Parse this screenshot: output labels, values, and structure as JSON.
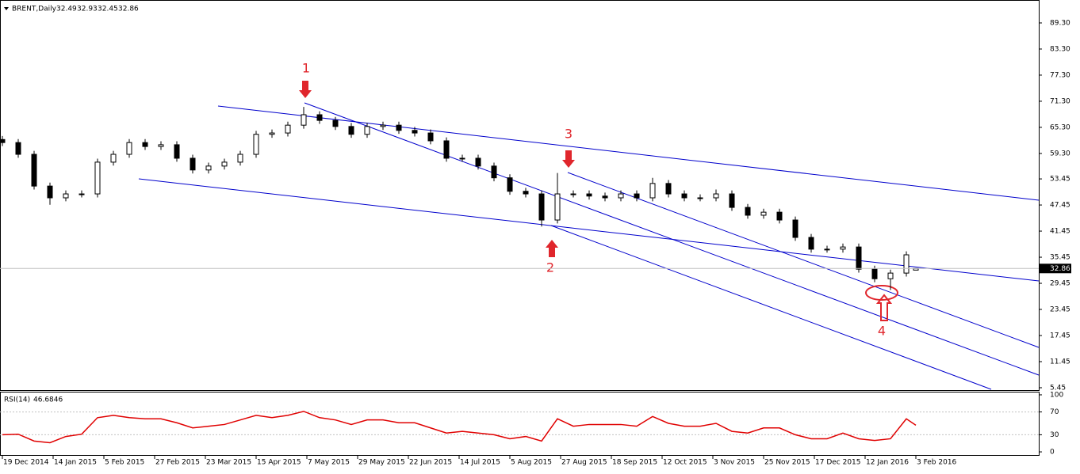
{
  "chart_data": [
    {
      "type": "candlestick",
      "title": "BRENT,Daily",
      "x": [
        0,
        5,
        10,
        15,
        20,
        25,
        30,
        35,
        40,
        45,
        50,
        55,
        60,
        65,
        70,
        75,
        80,
        85,
        90,
        95,
        100,
        105,
        110,
        115,
        120,
        125,
        130,
        135,
        140,
        145,
        150,
        155,
        160,
        165,
        170,
        175,
        180,
        185,
        190,
        195,
        200,
        205,
        210,
        215,
        220,
        225,
        230,
        235,
        240,
        245,
        250,
        255,
        260,
        265,
        270,
        275,
        280,
        285,
        288
      ],
      "open": [
        62.5,
        61.8,
        59.1,
        51.8,
        49.1,
        50.0,
        50.0,
        57.3,
        59.1,
        61.8,
        60.9,
        61.3,
        58.2,
        55.5,
        56.4,
        57.3,
        59.1,
        63.7,
        64.0,
        65.8,
        68.2,
        66.9,
        65.5,
        63.7,
        65.5,
        65.8,
        64.6,
        64.0,
        62.2,
        58.2,
        58.2,
        56.4,
        53.7,
        50.6,
        50.0,
        44.0,
        50.0,
        50.0,
        49.5,
        49.1,
        50.0,
        49.1,
        52.4,
        50.0,
        49.1,
        49.1,
        50.0,
        46.9,
        45.1,
        45.8,
        44.0,
        40.0,
        37.3,
        37.3,
        37.8,
        32.7,
        30.5,
        31.8,
        32.49
      ],
      "high": [
        63.3,
        62.6,
        59.9,
        52.6,
        50.8,
        50.8,
        58.1,
        59.9,
        62.6,
        62.6,
        62.1,
        62.1,
        59.0,
        57.2,
        58.1,
        59.9,
        64.5,
        64.8,
        66.6,
        70.0,
        69.0,
        67.7,
        66.3,
        66.3,
        66.6,
        66.6,
        65.4,
        64.8,
        63.0,
        59.0,
        59.0,
        57.2,
        54.5,
        51.4,
        50.8,
        54.8,
        50.8,
        50.8,
        50.3,
        50.8,
        50.8,
        53.7,
        53.2,
        50.8,
        49.9,
        51.0,
        50.8,
        47.7,
        46.6,
        46.6,
        44.8,
        40.8,
        38.1,
        38.6,
        38.6,
        33.5,
        32.6,
        36.8,
        32.93
      ],
      "low": [
        61.0,
        58.3,
        51.0,
        47.5,
        48.3,
        49.2,
        49.2,
        56.5,
        58.3,
        60.1,
        60.1,
        57.4,
        54.7,
        54.7,
        55.6,
        56.5,
        58.3,
        62.9,
        63.2,
        65.0,
        66.1,
        64.7,
        62.9,
        62.9,
        64.7,
        63.8,
        63.2,
        61.4,
        57.4,
        57.4,
        55.6,
        52.9,
        49.8,
        49.2,
        42.5,
        43.2,
        49.2,
        48.7,
        48.3,
        48.3,
        48.3,
        48.3,
        49.2,
        48.3,
        48.3,
        48.3,
        46.1,
        44.3,
        44.3,
        43.2,
        39.2,
        36.5,
        36.5,
        36.5,
        31.9,
        29.7,
        27.9,
        31.0,
        32.45
      ],
      "close": [
        61.8,
        59.1,
        51.8,
        49.1,
        50.0,
        50.0,
        57.3,
        59.1,
        61.8,
        60.9,
        61.3,
        58.2,
        55.5,
        56.4,
        57.3,
        59.1,
        63.7,
        64.0,
        65.8,
        68.2,
        66.9,
        65.5,
        63.7,
        65.5,
        65.8,
        64.6,
        64.0,
        62.2,
        58.2,
        58.2,
        56.4,
        53.7,
        50.6,
        50.0,
        44.0,
        50.0,
        50.0,
        49.5,
        49.1,
        50.0,
        49.1,
        52.4,
        50.0,
        49.1,
        49.1,
        50.0,
        46.9,
        45.1,
        45.8,
        44.0,
        40.0,
        37.3,
        37.3,
        37.8,
        32.7,
        30.5,
        31.8,
        36.0,
        32.86
      ],
      "color": "#000000",
      "xlim": [
        -0.75,
        326.75
      ],
      "xticks": [
        {
          "value": 0,
          "label": "19 Dec 2014"
        },
        {
          "value": 16,
          "label": "14 Jan 2015"
        },
        {
          "value": 32,
          "label": "5 Feb 2015"
        },
        {
          "value": 48,
          "label": "27 Feb 2015"
        },
        {
          "value": 64,
          "label": "23 Mar 2015"
        },
        {
          "value": 80,
          "label": "15 Apr 2015"
        },
        {
          "value": 96,
          "label": "7 May 2015"
        },
        {
          "value": 112,
          "label": "29 May 2015"
        },
        {
          "value": 128,
          "label": "22 Jun 2015"
        },
        {
          "value": 144,
          "label": "14 Jul 2015"
        },
        {
          "value": 160,
          "label": "5 Aug 2015"
        },
        {
          "value": 176,
          "label": "27 Aug 2015"
        },
        {
          "value": 192,
          "label": "18 Sep 2015"
        },
        {
          "value": 208,
          "label": "12 Oct 2015"
        },
        {
          "value": 224,
          "label": "3 Nov 2015"
        },
        {
          "value": 240,
          "label": "25 Nov 2015"
        },
        {
          "value": 256,
          "label": "17 Dec 2015"
        },
        {
          "value": 272,
          "label": "12 Jan 2016"
        },
        {
          "value": 288,
          "label": "3 Feb 2016"
        }
      ],
      "ylim": [
        4.9,
        94.57
      ],
      "yticks": [
        {
          "value": 89.3,
          "label": "89.30"
        },
        {
          "value": 83.3,
          "label": "83.30"
        },
        {
          "value": 77.3,
          "label": "77.30"
        },
        {
          "value": 71.3,
          "label": "71.30"
        },
        {
          "value": 65.3,
          "label": "65.30"
        },
        {
          "value": 59.3,
          "label": "59.30"
        },
        53.45,
        47.45,
        41.45,
        35.45,
        29.45,
        23.45,
        17.45,
        11.45,
        5.45
      ],
      "annotations": [
        "1",
        "2",
        "3",
        "4"
      ]
    },
    {
      "type": "line",
      "title": "RSI(14)",
      "x": [
        0,
        5,
        10,
        15,
        20,
        25,
        30,
        35,
        40,
        45,
        50,
        55,
        60,
        65,
        70,
        75,
        80,
        85,
        90,
        95,
        100,
        105,
        110,
        115,
        120,
        125,
        130,
        135,
        140,
        145,
        150,
        155,
        160,
        165,
        170,
        175,
        180,
        185,
        190,
        195,
        200,
        205,
        210,
        215,
        220,
        225,
        230,
        235,
        240,
        245,
        250,
        255,
        260,
        265,
        270,
        275,
        280,
        285,
        288
      ],
      "values": [
        30,
        31,
        19,
        16,
        27,
        31,
        60,
        64,
        60,
        58,
        58,
        51,
        42,
        45,
        48,
        56,
        64,
        60,
        64,
        71,
        60,
        56,
        48,
        56,
        56,
        51,
        51,
        42,
        33,
        36,
        33,
        30,
        23,
        27,
        19,
        58,
        45,
        48,
        48,
        48,
        45,
        62,
        50,
        45,
        45,
        50,
        36,
        33,
        42,
        42,
        30,
        23,
        23,
        33,
        23,
        20,
        23,
        58,
        46.6846
      ],
      "color": "#e00000",
      "ylim": [
        -5.5,
        105.5
      ],
      "yticks": [
        100,
        70,
        30,
        0
      ]
    }
  ]
}
